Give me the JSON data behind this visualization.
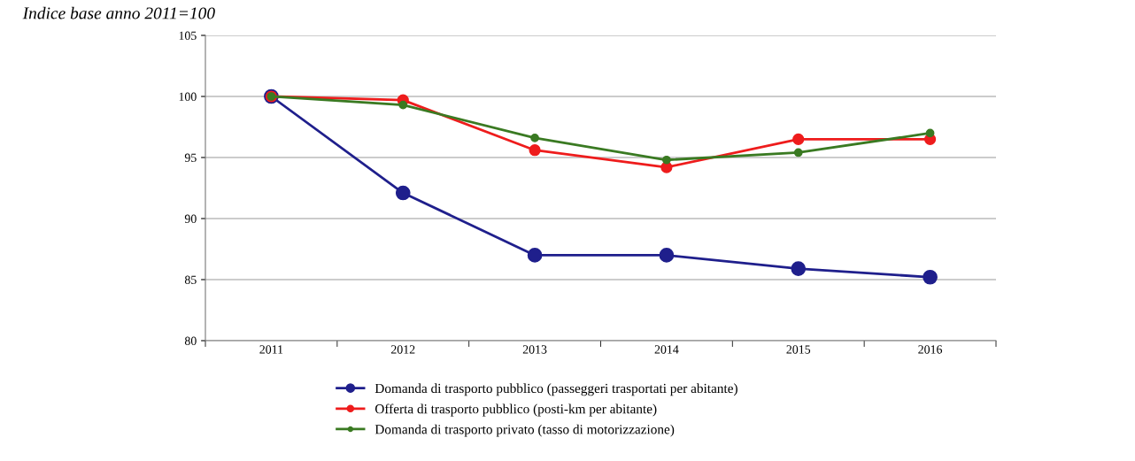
{
  "chart_data": {
    "type": "line",
    "title": "Indice base anno 2011=100",
    "categories": [
      "2011",
      "2012",
      "2013",
      "2014",
      "2015",
      "2016"
    ],
    "series": [
      {
        "name": "Domanda di trasporto pubblico (passeggeri trasportati per abitante)",
        "color": "#1f1f8c",
        "values": [
          100,
          92.1,
          87.0,
          87.0,
          85.9,
          85.2
        ]
      },
      {
        "name": "Offerta di trasporto pubblico (posti-km per abitante)",
        "color": "#ee1c1c",
        "values": [
          100,
          99.7,
          95.6,
          94.2,
          96.5,
          96.5
        ]
      },
      {
        "name": "Domanda di trasporto privato (tasso di motorizzazione)",
        "color": "#3a7a22",
        "values": [
          100,
          99.3,
          96.6,
          94.8,
          95.4,
          97.0
        ]
      }
    ],
    "ylim": [
      80,
      105
    ],
    "yticks": [
      80,
      85,
      90,
      95,
      100,
      105
    ],
    "grid": "y",
    "legend": "bottom",
    "marker": "circle",
    "line_style": "solid"
  }
}
